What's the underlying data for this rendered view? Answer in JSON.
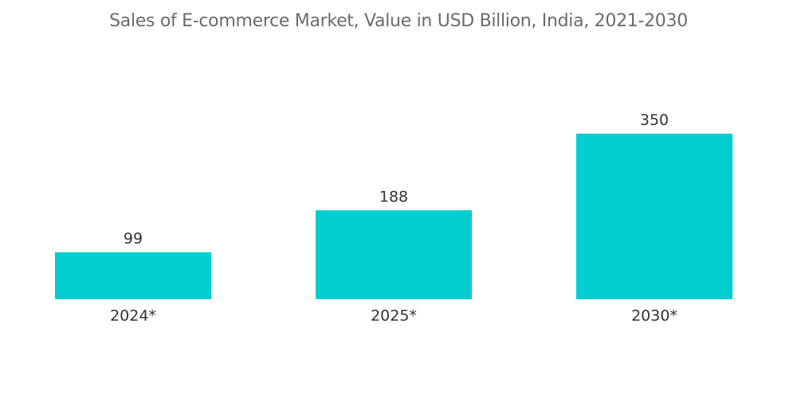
{
  "chart_data": {
    "type": "bar",
    "title": "Sales of E-commerce Market, Value in USD Billion, India, 2021-2030",
    "categories": [
      "2024*",
      "2025*",
      "2030*"
    ],
    "values": [
      99,
      188,
      350
    ],
    "bar_color": "#00CED1",
    "xlabel": "",
    "ylabel": "",
    "ylim": [
      0,
      350
    ],
    "grid": false,
    "legend": "none"
  }
}
